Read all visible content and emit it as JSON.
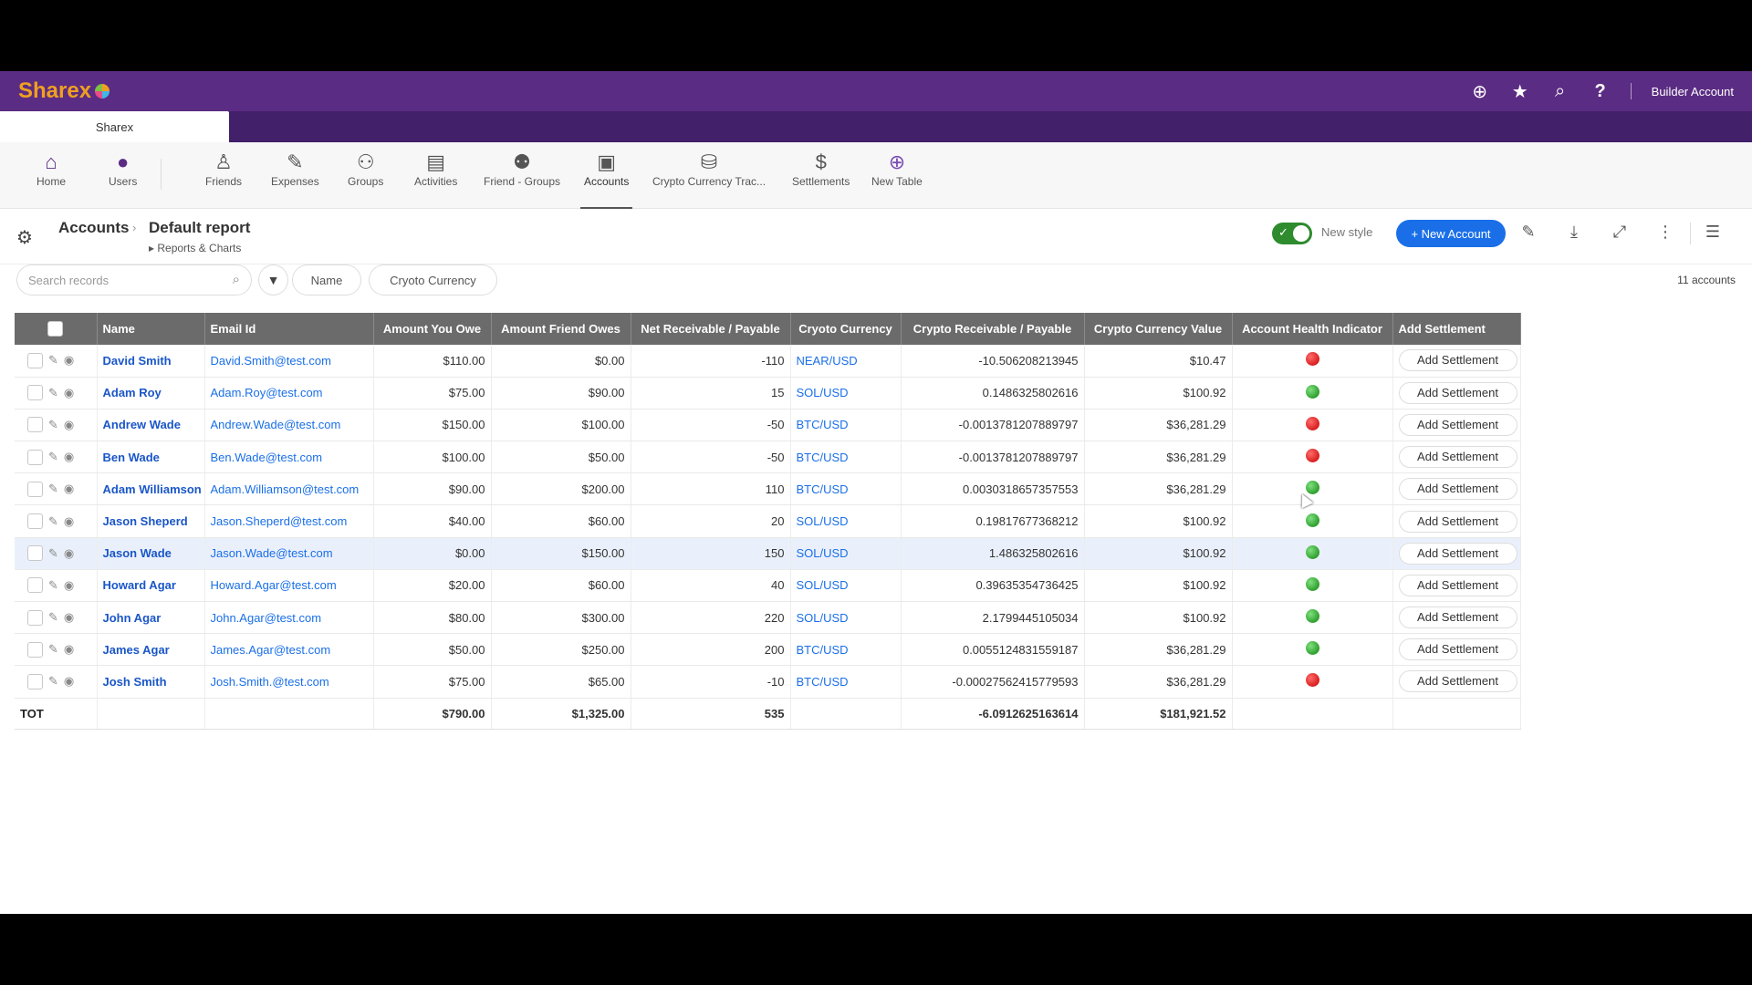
{
  "app": {
    "brand": "Sharex",
    "account_label": "Builder Account",
    "tab_label": "Sharex"
  },
  "topbar_icons": [
    "plus-circle-icon",
    "star-icon",
    "search-icon",
    "help-icon"
  ],
  "nav": [
    {
      "label": "Home",
      "icon": "home-icon"
    },
    {
      "label": "Users",
      "icon": "user-icon"
    },
    {
      "label": "Friends",
      "icon": "friends-icon"
    },
    {
      "label": "Expenses",
      "icon": "expenses-icon"
    },
    {
      "label": "Groups",
      "icon": "groups-icon"
    },
    {
      "label": "Activities",
      "icon": "activities-icon"
    },
    {
      "label": "Friend - Groups",
      "icon": "friend-groups-icon"
    },
    {
      "label": "Accounts",
      "icon": "accounts-icon",
      "active": true
    },
    {
      "label": "Crypto Currency Trac...",
      "icon": "crypto-icon"
    },
    {
      "label": "Settlements",
      "icon": "settlements-icon"
    },
    {
      "label": "New Table",
      "icon": "plus-circle-icon"
    }
  ],
  "header": {
    "breadcrumb_root": "Accounts",
    "report": "Default report",
    "sub_link": "Reports & Charts",
    "toggle_label": "New style",
    "new_button": "+ New Account"
  },
  "filters": {
    "search_placeholder": "Search records",
    "chips": [
      "Name",
      "Cryoto Currency"
    ],
    "count": "11 accounts"
  },
  "columns": [
    "Name",
    "Email Id",
    "Amount You Owe",
    "Amount Friend Owes",
    "Net Receivable / Payable",
    "Cryoto Currency",
    "Crypto  Receivable / Payable",
    "Crypto Currency Value",
    "Account Health Indicator",
    "Add Settlement"
  ],
  "rows": [
    {
      "name": "David Smith",
      "email": "David.Smith@test.com",
      "you_owe": "$110.00",
      "friend_owes": "$0.00",
      "net": "-110",
      "crypto": "NEAR/USD",
      "crypto_rp": "-10.506208213945",
      "value": "$10.47",
      "health": "red",
      "action": "Add Settlement"
    },
    {
      "name": "Adam Roy",
      "email": "Adam.Roy@test.com",
      "you_owe": "$75.00",
      "friend_owes": "$90.00",
      "net": "15",
      "crypto": "SOL/USD",
      "crypto_rp": "0.1486325802616",
      "value": "$100.92",
      "health": "green",
      "action": "Add Settlement"
    },
    {
      "name": "Andrew Wade",
      "email": "Andrew.Wade@test.com",
      "you_owe": "$150.00",
      "friend_owes": "$100.00",
      "net": "-50",
      "crypto": "BTC/USD",
      "crypto_rp": "-0.0013781207889797",
      "value": "$36,281.29",
      "health": "red",
      "action": "Add Settlement"
    },
    {
      "name": "Ben Wade",
      "email": "Ben.Wade@test.com",
      "you_owe": "$100.00",
      "friend_owes": "$50.00",
      "net": "-50",
      "crypto": "BTC/USD",
      "crypto_rp": "-0.0013781207889797",
      "value": "$36,281.29",
      "health": "red",
      "action": "Add Settlement"
    },
    {
      "name": "Adam Williamson",
      "email": "Adam.Williamson@test.com",
      "you_owe": "$90.00",
      "friend_owes": "$200.00",
      "net": "110",
      "crypto": "BTC/USD",
      "crypto_rp": "0.0030318657357553",
      "value": "$36,281.29",
      "health": "green",
      "action": "Add Settlement"
    },
    {
      "name": "Jason Sheperd",
      "email": "Jason.Sheperd@test.com",
      "you_owe": "$40.00",
      "friend_owes": "$60.00",
      "net": "20",
      "crypto": "SOL/USD",
      "crypto_rp": "0.19817677368212",
      "value": "$100.92",
      "health": "green",
      "action": "Add Settlement"
    },
    {
      "name": "Jason Wade",
      "email": "Jason.Wade@test.com",
      "you_owe": "$0.00",
      "friend_owes": "$150.00",
      "net": "150",
      "crypto": "SOL/USD",
      "crypto_rp": "1.486325802616",
      "value": "$100.92",
      "health": "green",
      "action": "Add Settlement",
      "selected": true
    },
    {
      "name": "Howard Agar",
      "email": "Howard.Agar@test.com",
      "you_owe": "$20.00",
      "friend_owes": "$60.00",
      "net": "40",
      "crypto": "SOL/USD",
      "crypto_rp": "0.39635354736425",
      "value": "$100.92",
      "health": "green",
      "action": "Add Settlement"
    },
    {
      "name": "John Agar",
      "email": "John.Agar@test.com",
      "you_owe": "$80.00",
      "friend_owes": "$300.00",
      "net": "220",
      "crypto": "SOL/USD",
      "crypto_rp": "2.1799445105034",
      "value": "$100.92",
      "health": "green",
      "action": "Add Settlement"
    },
    {
      "name": "James Agar",
      "email": "James.Agar@test.com",
      "you_owe": "$50.00",
      "friend_owes": "$250.00",
      "net": "200",
      "crypto": "BTC/USD",
      "crypto_rp": "0.0055124831559187",
      "value": "$36,281.29",
      "health": "green",
      "action": "Add Settlement"
    },
    {
      "name": "Josh Smith",
      "email": "Josh.Smith.@test.com",
      "you_owe": "$75.00",
      "friend_owes": "$65.00",
      "net": "-10",
      "crypto": "BTC/USD",
      "crypto_rp": "-0.00027562415779593",
      "value": "$36,281.29",
      "health": "red",
      "action": "Add Settlement"
    }
  ],
  "totals": {
    "label": "TOT",
    "you_owe": "$790.00",
    "friend_owes": "$1,325.00",
    "net": "535",
    "crypto_rp": "-6.0912625163614",
    "value": "$181,921.52"
  },
  "colors": {
    "topbar": "#5b2c83",
    "tabstrip": "#43206a",
    "primary": "#1a6fe8",
    "link": "#1a56c8",
    "header_bg": "#6b6b6b",
    "health_red": "#d81e1e",
    "health_green": "#2e9f2e"
  }
}
